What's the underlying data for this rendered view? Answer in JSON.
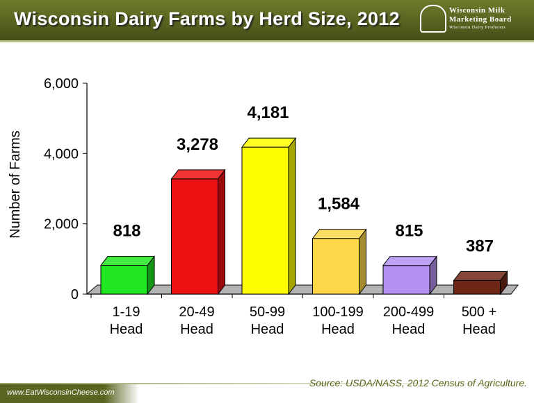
{
  "header": {
    "title": "Wisconsin Dairy Farms by Herd Size, 2012",
    "logo_line1": "Wisconsin Milk",
    "logo_line2": "Marketing Board",
    "logo_line3": "Wisconsin Dairy Producers"
  },
  "footer": {
    "url": "www.EatWisconsinCheese.com",
    "source": "Source:  USDA/NASS, 2012 Census of Agriculture."
  },
  "chart_data": {
    "type": "bar",
    "categories": [
      [
        "1-19",
        "Head"
      ],
      [
        "20-49",
        "Head"
      ],
      [
        "50-99",
        "Head"
      ],
      [
        "100-199",
        "Head"
      ],
      [
        "200-499",
        "Head"
      ],
      [
        "500 +",
        "Head"
      ]
    ],
    "values": [
      818,
      3278,
      4181,
      1584,
      815,
      387
    ],
    "data_labels": [
      "818",
      "3,278",
      "4,181",
      "1,584",
      "815",
      "387"
    ],
    "colors": [
      "#22e622",
      "#ee1111",
      "#ffff00",
      "#ffd84a",
      "#b591f2",
      "#6e2616"
    ],
    "ylabel": "Number of Farms",
    "ylim": [
      0,
      6000
    ],
    "yticks": [
      0,
      2000,
      4000,
      6000
    ],
    "ytick_labels": [
      "0",
      "2,000",
      "4,000",
      "6,000"
    ],
    "legend": false,
    "grid": false
  }
}
